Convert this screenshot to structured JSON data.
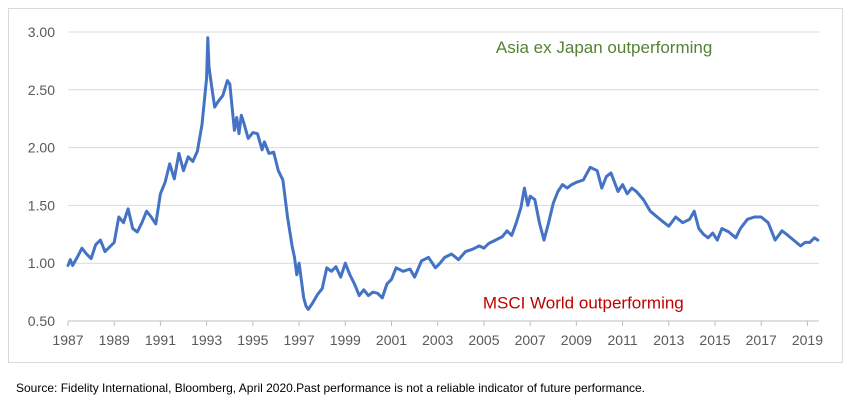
{
  "chart_data": {
    "type": "line",
    "title": "",
    "xlabel": "",
    "ylabel": "",
    "xlim": [
      1987,
      2019.5
    ],
    "ylim": [
      0.5,
      3.0
    ],
    "grid": {
      "horizontal": true,
      "vertical": false
    },
    "y_ticks": [
      "0.50",
      "1.00",
      "1.50",
      "2.00",
      "2.50",
      "3.00"
    ],
    "x_ticks": [
      "1987",
      "1989",
      "1991",
      "1993",
      "1995",
      "1997",
      "1999",
      "2001",
      "2003",
      "2005",
      "2007",
      "2009",
      "2011",
      "2013",
      "2015",
      "2017",
      "2019"
    ],
    "series": [
      {
        "color": "#4472c4",
        "x": [
          1987.0,
          1987.1,
          1987.2,
          1987.4,
          1987.6,
          1987.8,
          1988.0,
          1988.2,
          1988.4,
          1988.6,
          1988.8,
          1989.0,
          1989.2,
          1989.4,
          1989.6,
          1989.8,
          1990.0,
          1990.2,
          1990.4,
          1990.6,
          1990.8,
          1991.0,
          1991.2,
          1991.4,
          1991.6,
          1991.8,
          1992.0,
          1992.2,
          1992.4,
          1992.6,
          1992.8,
          1993.0,
          1993.05,
          1993.1,
          1993.2,
          1993.35,
          1993.5,
          1993.7,
          1993.9,
          1994.0,
          1994.1,
          1994.2,
          1994.3,
          1994.4,
          1994.5,
          1994.6,
          1994.8,
          1995.0,
          1995.2,
          1995.4,
          1995.5,
          1995.7,
          1995.9,
          1996.1,
          1996.3,
          1996.5,
          1996.7,
          1996.8,
          1996.9,
          1997.0,
          1997.1,
          1997.2,
          1997.3,
          1997.4,
          1997.6,
          1997.8,
          1998.0,
          1998.2,
          1998.4,
          1998.6,
          1998.8,
          1999.0,
          1999.2,
          1999.4,
          1999.6,
          1999.8,
          2000.0,
          2000.2,
          2000.4,
          2000.6,
          2000.8,
          2001.0,
          2001.2,
          2001.5,
          2001.8,
          2002.0,
          2002.3,
          2002.6,
          2002.9,
          2003.1,
          2003.3,
          2003.6,
          2003.9,
          2004.2,
          2004.5,
          2004.8,
          2005.0,
          2005.2,
          2005.5,
          2005.8,
          2006.0,
          2006.2,
          2006.4,
          2006.6,
          2006.75,
          2006.9,
          2007.0,
          2007.2,
          2007.4,
          2007.6,
          2007.8,
          2008.0,
          2008.2,
          2008.4,
          2008.6,
          2008.8,
          2009.0,
          2009.3,
          2009.6,
          2009.9,
          2010.1,
          2010.3,
          2010.5,
          2010.8,
          2011.0,
          2011.2,
          2011.4,
          2011.6,
          2011.9,
          2012.2,
          2012.5,
          2012.8,
          2013.0,
          2013.3,
          2013.6,
          2013.9,
          2014.1,
          2014.3,
          2014.5,
          2014.7,
          2014.9,
          2015.1,
          2015.3,
          2015.6,
          2015.9,
          2016.1,
          2016.4,
          2016.7,
          2017.0,
          2017.3,
          2017.6,
          2017.9,
          2018.1,
          2018.4,
          2018.7,
          2018.9,
          2019.1,
          2019.3,
          2019.45
        ],
        "y": [
          0.98,
          1.03,
          0.98,
          1.05,
          1.13,
          1.08,
          1.04,
          1.16,
          1.2,
          1.1,
          1.14,
          1.18,
          1.4,
          1.35,
          1.47,
          1.3,
          1.27,
          1.35,
          1.45,
          1.4,
          1.34,
          1.6,
          1.7,
          1.86,
          1.73,
          1.95,
          1.8,
          1.92,
          1.88,
          1.97,
          2.2,
          2.6,
          2.95,
          2.7,
          2.55,
          2.35,
          2.4,
          2.45,
          2.58,
          2.55,
          2.35,
          2.15,
          2.26,
          2.12,
          2.28,
          2.22,
          2.08,
          2.13,
          2.12,
          1.98,
          2.05,
          1.95,
          1.96,
          1.8,
          1.72,
          1.4,
          1.15,
          1.05,
          0.9,
          1.0,
          0.85,
          0.7,
          0.63,
          0.6,
          0.66,
          0.73,
          0.78,
          0.96,
          0.93,
          0.97,
          0.88,
          1.0,
          0.9,
          0.82,
          0.72,
          0.77,
          0.72,
          0.75,
          0.74,
          0.7,
          0.82,
          0.86,
          0.96,
          0.93,
          0.95,
          0.88,
          1.02,
          1.05,
          0.96,
          1.0,
          1.05,
          1.08,
          1.03,
          1.1,
          1.12,
          1.15,
          1.13,
          1.17,
          1.2,
          1.23,
          1.28,
          1.24,
          1.35,
          1.48,
          1.65,
          1.5,
          1.58,
          1.55,
          1.35,
          1.2,
          1.35,
          1.52,
          1.62,
          1.68,
          1.65,
          1.68,
          1.7,
          1.72,
          1.83,
          1.8,
          1.65,
          1.75,
          1.78,
          1.62,
          1.68,
          1.6,
          1.65,
          1.62,
          1.55,
          1.45,
          1.4,
          1.35,
          1.32,
          1.4,
          1.35,
          1.38,
          1.45,
          1.3,
          1.25,
          1.22,
          1.26,
          1.2,
          1.3,
          1.27,
          1.22,
          1.3,
          1.38,
          1.4,
          1.4,
          1.35,
          1.2,
          1.28,
          1.25,
          1.2,
          1.15,
          1.18,
          1.18,
          1.22,
          1.2
        ]
      }
    ],
    "annotations": [
      {
        "text": "Asia ex Japan outperforming",
        "x": 2010.2,
        "y": 2.87,
        "color": "#548235"
      },
      {
        "text": "MSCI World outperforming",
        "x": 2009.3,
        "y": 0.66,
        "color": "#c00000"
      }
    ]
  },
  "source_note": "Source: Fidelity International, Bloomberg, April 2020.Past performance is not a reliable indicator of future performance."
}
